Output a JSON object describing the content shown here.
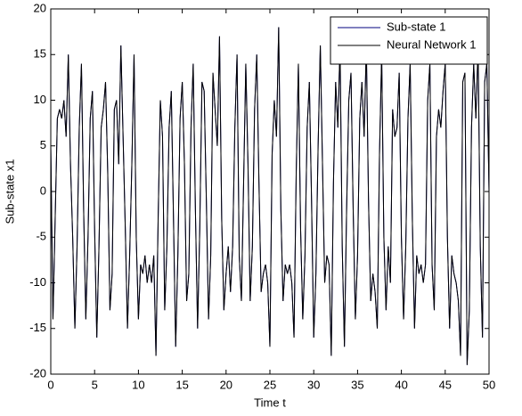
{
  "chart_data": {
    "type": "line",
    "xlabel": "Time t",
    "ylabel": "Sub-state x1",
    "xlim": [
      0,
      50
    ],
    "ylim": [
      -20,
      20
    ],
    "xticks": [
      0,
      5,
      10,
      15,
      20,
      25,
      30,
      35,
      40,
      45,
      50
    ],
    "yticks": [
      -20,
      -15,
      -10,
      -5,
      0,
      5,
      10,
      15,
      20
    ],
    "legend": "upper right",
    "x": [
      0,
      0.25,
      0.5,
      0.75,
      1,
      1.25,
      1.5,
      1.75,
      2,
      2.25,
      2.5,
      2.75,
      3,
      3.25,
      3.5,
      3.75,
      4,
      4.25,
      4.5,
      4.75,
      5,
      5.25,
      5.5,
      5.75,
      6,
      6.25,
      6.5,
      6.75,
      7,
      7.25,
      7.5,
      7.75,
      8,
      8.25,
      8.5,
      8.75,
      9,
      9.25,
      9.5,
      9.75,
      10,
      10.25,
      10.5,
      10.75,
      11,
      11.25,
      11.5,
      11.75,
      12,
      12.25,
      12.5,
      12.75,
      13,
      13.25,
      13.5,
      13.75,
      14,
      14.25,
      14.5,
      14.75,
      15,
      15.25,
      15.5,
      15.75,
      16,
      16.25,
      16.5,
      16.75,
      17,
      17.25,
      17.5,
      17.75,
      18,
      18.25,
      18.5,
      18.75,
      19,
      19.25,
      19.5,
      19.75,
      20,
      20.25,
      20.5,
      20.75,
      21,
      21.25,
      21.5,
      21.75,
      22,
      22.25,
      22.5,
      22.75,
      23,
      23.25,
      23.5,
      23.75,
      24,
      24.25,
      24.5,
      24.75,
      25,
      25.25,
      25.5,
      25.75,
      26,
      26.25,
      26.5,
      26.75,
      27,
      27.25,
      27.5,
      27.75,
      28,
      28.25,
      28.5,
      28.75,
      29,
      29.25,
      29.5,
      29.75,
      30,
      30.25,
      30.5,
      30.75,
      31,
      31.25,
      31.5,
      31.75,
      32,
      32.25,
      32.5,
      32.75,
      33,
      33.25,
      33.5,
      33.75,
      34,
      34.25,
      34.5,
      34.75,
      35,
      35.25,
      35.5,
      35.75,
      36,
      36.25,
      36.5,
      36.75,
      37,
      37.25,
      37.5,
      37.75,
      38,
      38.25,
      38.5,
      38.75,
      39,
      39.25,
      39.5,
      39.75,
      40,
      40.25,
      40.5,
      40.75,
      41,
      41.25,
      41.5,
      41.75,
      42,
      42.25,
      42.5,
      42.75,
      43,
      43.25,
      43.5,
      43.75,
      44,
      44.25,
      44.5,
      44.75,
      45,
      45.25,
      45.5,
      45.75,
      46,
      46.25,
      46.5,
      46.75,
      47,
      47.25,
      47.5,
      47.75,
      48,
      48.25,
      48.5,
      48.75,
      49,
      49.25,
      49.5,
      49.75,
      50
    ],
    "series": [
      {
        "name": "Sub-state 1",
        "color": "#00007f",
        "values": [
          5,
          -14,
          -3,
          8,
          9,
          8,
          10,
          6,
          15,
          3,
          -5,
          -15,
          -6,
          7,
          14,
          -2,
          -14,
          -5,
          8,
          11,
          -4,
          -16,
          -6,
          7,
          9,
          12,
          2,
          -13,
          -9,
          9,
          10,
          3,
          16,
          6,
          -4,
          -15,
          -7,
          3,
          15,
          -5,
          -14,
          -8,
          -9,
          -7,
          -10,
          -8,
          -10,
          -7,
          -18,
          -3,
          10,
          6,
          -13,
          -6,
          7,
          11,
          -3,
          -17,
          -7,
          8,
          12,
          3,
          -12,
          -9,
          7,
          14,
          -2,
          -15,
          -4,
          12,
          11,
          -1,
          -14,
          -7,
          13,
          9,
          5,
          17,
          -3,
          -13,
          -9,
          -6,
          -11,
          -6,
          7,
          15,
          -7,
          -12,
          1,
          14,
          3,
          -12,
          -6,
          9,
          15,
          1,
          -11,
          -9,
          -8,
          -10,
          -17,
          4,
          10,
          6,
          18,
          -2,
          -12,
          -8,
          -9,
          -8,
          -10,
          -16,
          2,
          14,
          -4,
          -14,
          -7,
          7,
          12,
          -1,
          -16,
          -9,
          5,
          16,
          3,
          -10,
          -7,
          -8,
          -18,
          1,
          12,
          7,
          16,
          -6,
          -17,
          -2,
          10,
          13,
          -2,
          -14,
          -7,
          8,
          12,
          6,
          16,
          -1,
          -12,
          -9,
          -11,
          -15,
          4,
          15,
          -5,
          -13,
          -6,
          -10,
          9,
          6,
          7,
          13,
          -5,
          -14,
          -6,
          8,
          14,
          -3,
          -15,
          -7,
          -9,
          -8,
          -10,
          -8,
          10,
          14,
          -8,
          -13,
          6,
          9,
          7,
          11,
          14,
          -5,
          -15,
          -7,
          -9,
          -10,
          -12,
          -18,
          12,
          13,
          -19,
          -13,
          7,
          14,
          8,
          16,
          -6,
          -16,
          12,
          14,
          0
        ]
      },
      {
        "name": "Neural Network 1",
        "color": "#000000",
        "values": [
          5,
          -14,
          -3,
          8,
          9,
          8,
          10,
          6,
          15,
          3,
          -5,
          -15,
          -6,
          7,
          14,
          -2,
          -14,
          -5,
          8,
          11,
          -4,
          -16,
          -6,
          7,
          9,
          12,
          2,
          -13,
          -9,
          9,
          10,
          3,
          16,
          6,
          -4,
          -15,
          -7,
          3,
          15,
          -5,
          -14,
          -8,
          -9,
          -7,
          -10,
          -8,
          -10,
          -7,
          -18,
          -3,
          10,
          6,
          -13,
          -6,
          7,
          11,
          -3,
          -17,
          -7,
          8,
          12,
          3,
          -12,
          -9,
          7,
          14,
          -2,
          -15,
          -4,
          12,
          11,
          -1,
          -14,
          -7,
          13,
          9,
          5,
          17,
          -3,
          -13,
          -9,
          -6,
          -11,
          -6,
          7,
          15,
          -7,
          -12,
          1,
          14,
          3,
          -12,
          -6,
          9,
          15,
          1,
          -11,
          -9,
          -8,
          -10,
          -17,
          4,
          10,
          6,
          18,
          -2,
          -12,
          -8,
          -9,
          -8,
          -10,
          -16,
          2,
          14,
          -4,
          -14,
          -7,
          7,
          12,
          -1,
          -16,
          -9,
          5,
          16,
          3,
          -10,
          -7,
          -8,
          -18,
          1,
          12,
          7,
          16,
          -6,
          -17,
          -2,
          10,
          13,
          -2,
          -14,
          -7,
          8,
          12,
          6,
          16,
          -1,
          -12,
          -9,
          -11,
          -15,
          4,
          15,
          -5,
          -13,
          -6,
          -10,
          9,
          6,
          7,
          13,
          -5,
          -14,
          -6,
          8,
          14,
          -3,
          -15,
          -7,
          -9,
          -8,
          -10,
          -8,
          10,
          14,
          -8,
          -13,
          6,
          9,
          7,
          11,
          14,
          -5,
          -15,
          -7,
          -9,
          -10,
          -12,
          -18,
          12,
          13,
          -19,
          -13,
          7,
          14,
          8,
          16,
          -6,
          -16,
          12,
          14,
          0
        ]
      }
    ]
  }
}
